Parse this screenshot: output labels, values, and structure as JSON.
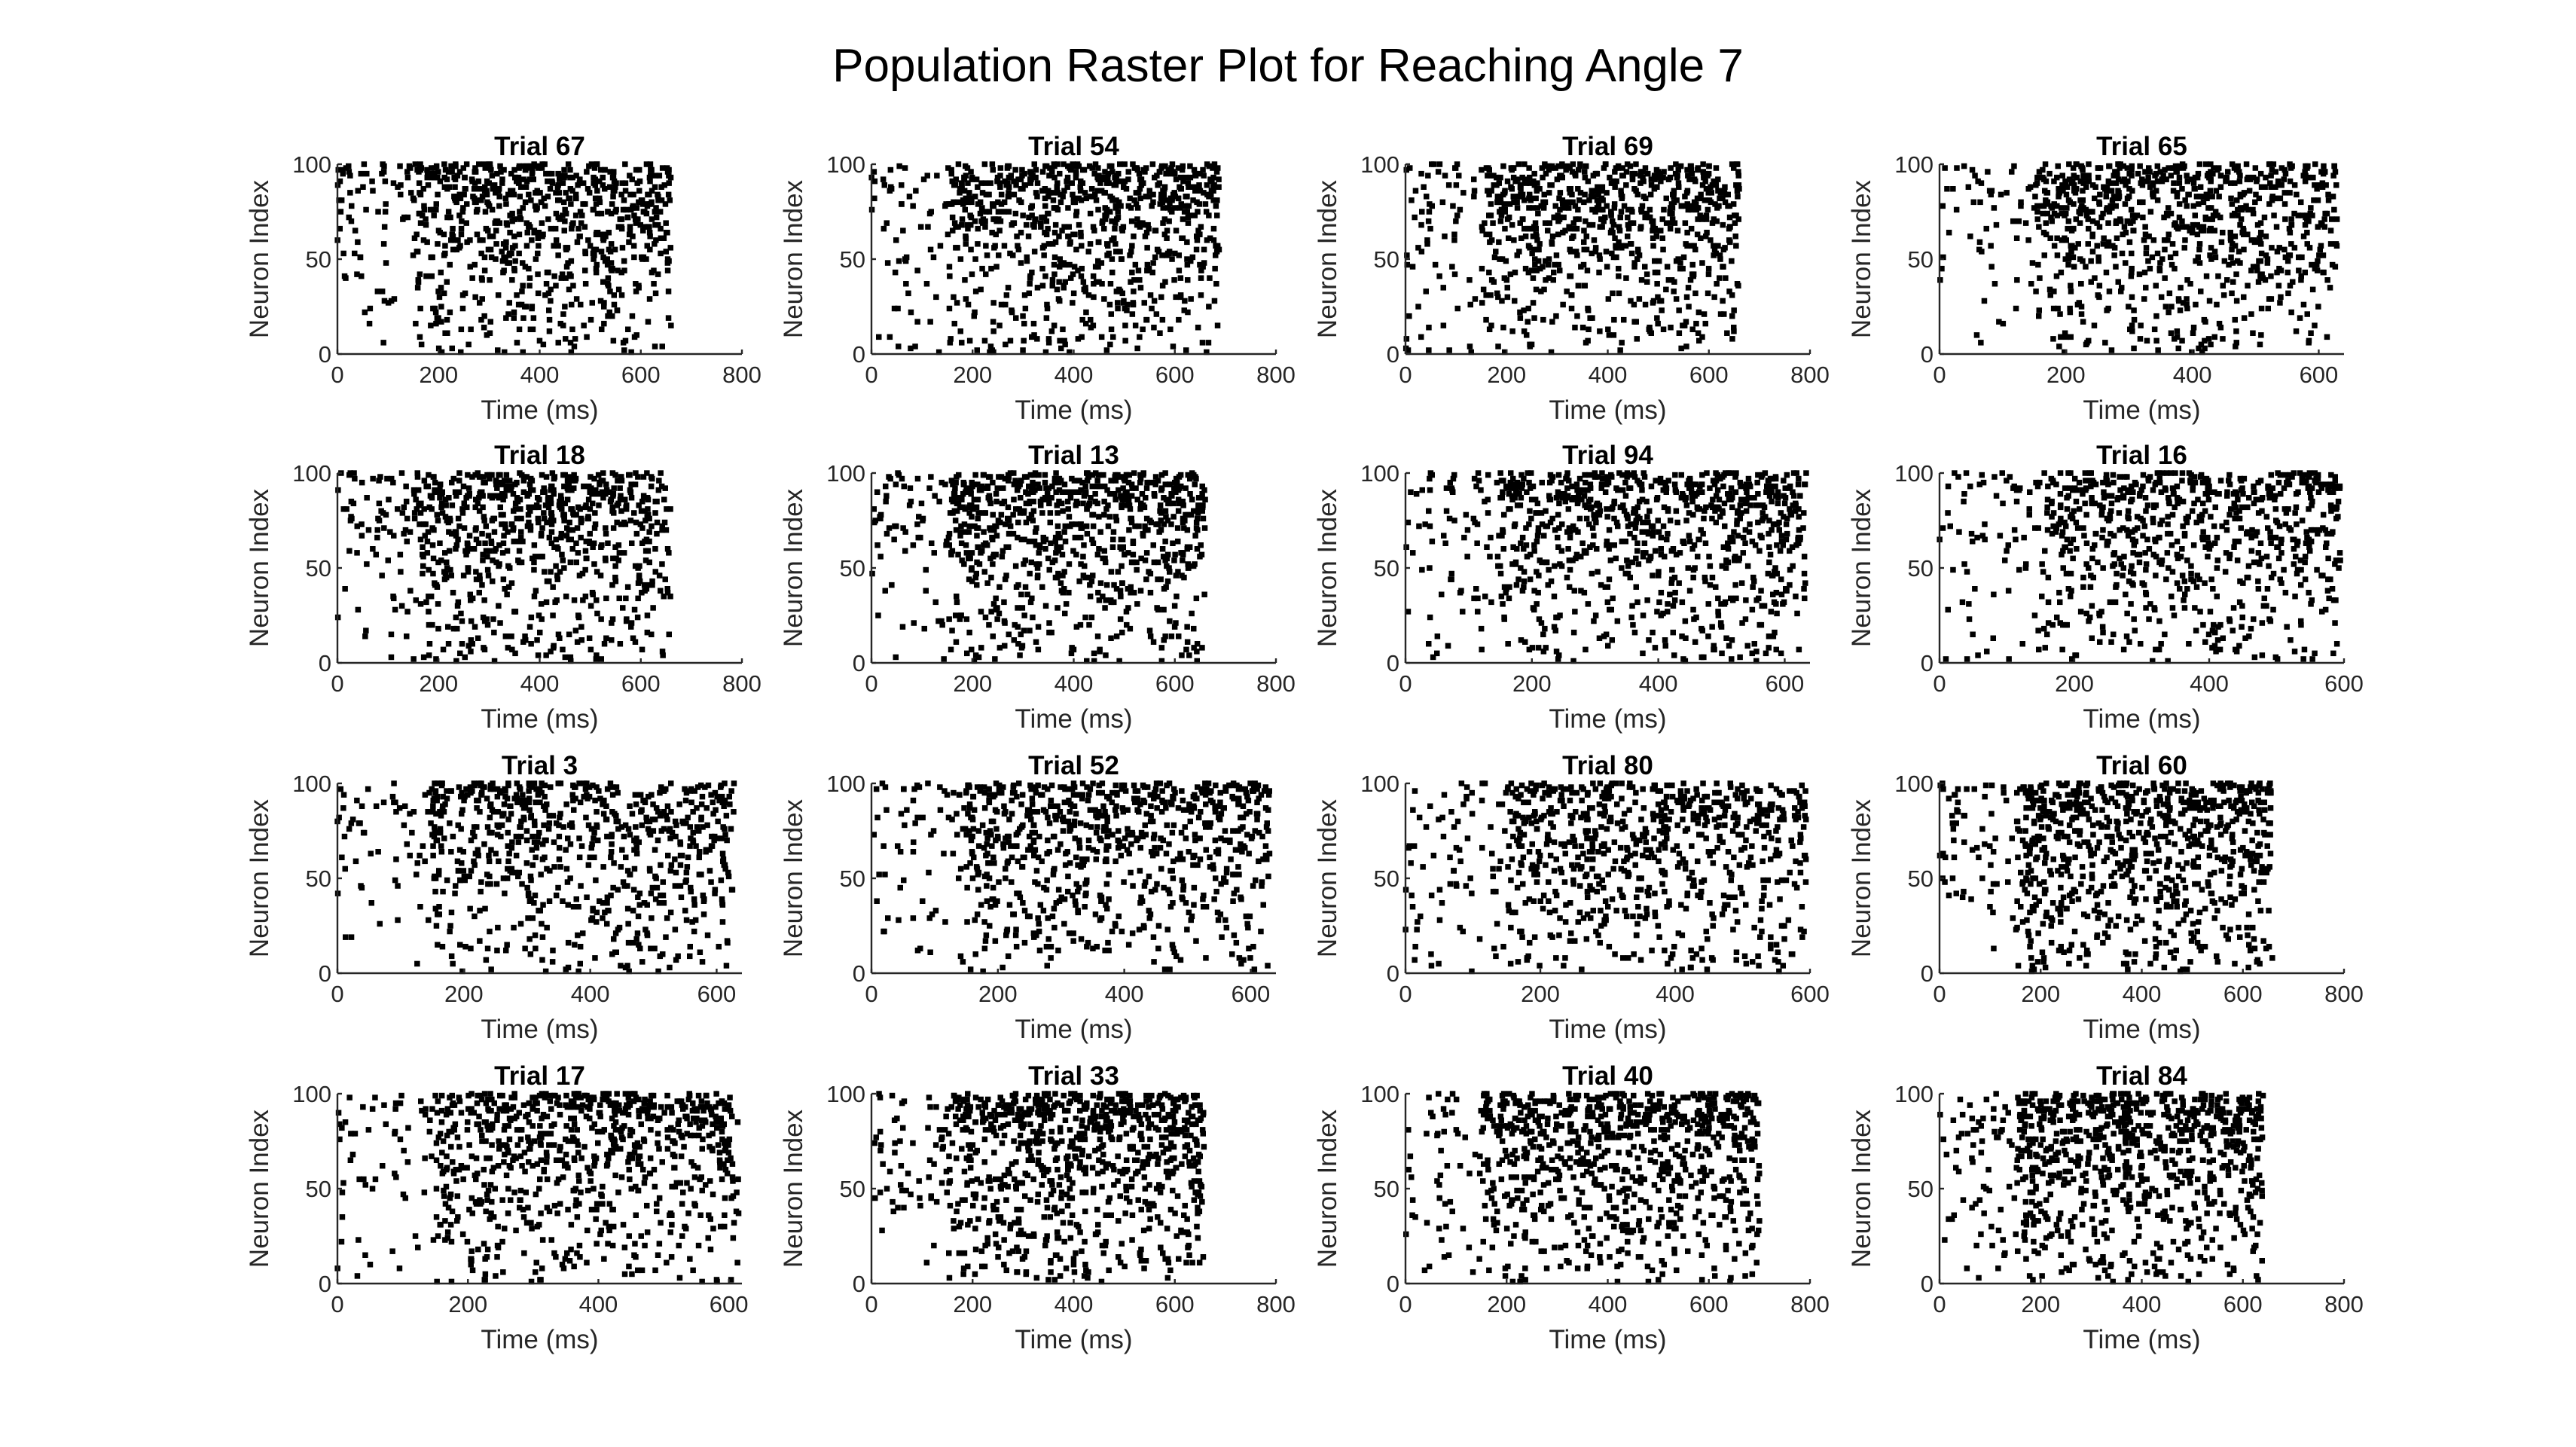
{
  "figure": {
    "title": "Population Raster Plot for Reaching Angle 7"
  },
  "chart_data": {
    "type": "scatter",
    "layout": "4x4 grid of raster subplots",
    "marker": "square dots (spikes)",
    "marker_color": "#000000",
    "grid": false,
    "legend": "none",
    "xlabel": "Time (ms)",
    "ylabel": "Neuron Index",
    "ylim": [
      0,
      100
    ],
    "yticks": [
      0,
      50,
      100
    ],
    "panels": [
      {
        "title": "Trial 67",
        "xlim": [
          0,
          800
        ],
        "xticks": [
          0,
          200,
          400,
          600,
          800
        ],
        "duration": 660
      },
      {
        "title": "Trial 54",
        "xlim": [
          0,
          800
        ],
        "xticks": [
          0,
          200,
          400,
          600,
          800
        ],
        "duration": 690
      },
      {
        "title": "Trial 69",
        "xlim": [
          0,
          800
        ],
        "xticks": [
          0,
          200,
          400,
          600,
          800
        ],
        "duration": 660
      },
      {
        "title": "Trial 65",
        "xlim": [
          0,
          640
        ],
        "xticks": [
          0,
          200,
          400,
          600
        ],
        "duration": 630
      },
      {
        "title": "Trial 18",
        "xlim": [
          0,
          800
        ],
        "xticks": [
          0,
          200,
          400,
          600,
          800
        ],
        "duration": 660
      },
      {
        "title": "Trial 13",
        "xlim": [
          0,
          800
        ],
        "xticks": [
          0,
          200,
          400,
          600,
          800
        ],
        "duration": 660
      },
      {
        "title": "Trial 94",
        "xlim": [
          0,
          640
        ],
        "xticks": [
          0,
          200,
          400,
          600
        ],
        "duration": 635
      },
      {
        "title": "Trial 16",
        "xlim": [
          0,
          600
        ],
        "xticks": [
          0,
          200,
          400,
          600
        ],
        "duration": 595
      },
      {
        "title": "Trial 3",
        "xlim": [
          0,
          640
        ],
        "xticks": [
          0,
          200,
          400,
          600
        ],
        "duration": 630
      },
      {
        "title": "Trial 52",
        "xlim": [
          0,
          640
        ],
        "xticks": [
          0,
          200,
          400,
          600
        ],
        "duration": 630
      },
      {
        "title": "Trial 80",
        "xlim": [
          0,
          600
        ],
        "xticks": [
          0,
          200,
          400,
          600
        ],
        "duration": 595
      },
      {
        "title": "Trial 60",
        "xlim": [
          0,
          800
        ],
        "xticks": [
          0,
          200,
          400,
          600,
          800
        ],
        "duration": 660
      },
      {
        "title": "Trial 17",
        "xlim": [
          0,
          620
        ],
        "xticks": [
          0,
          200,
          400,
          600
        ],
        "duration": 615
      },
      {
        "title": "Trial 33",
        "xlim": [
          0,
          800
        ],
        "xticks": [
          0,
          200,
          400,
          600,
          800
        ],
        "duration": 660
      },
      {
        "title": "Trial 40",
        "xlim": [
          0,
          800
        ],
        "xticks": [
          0,
          200,
          400,
          600,
          800
        ],
        "duration": 700
      },
      {
        "title": "Trial 84",
        "xlim": [
          0,
          800
        ],
        "xticks": [
          0,
          200,
          400,
          600,
          800
        ],
        "duration": 640
      }
    ]
  }
}
